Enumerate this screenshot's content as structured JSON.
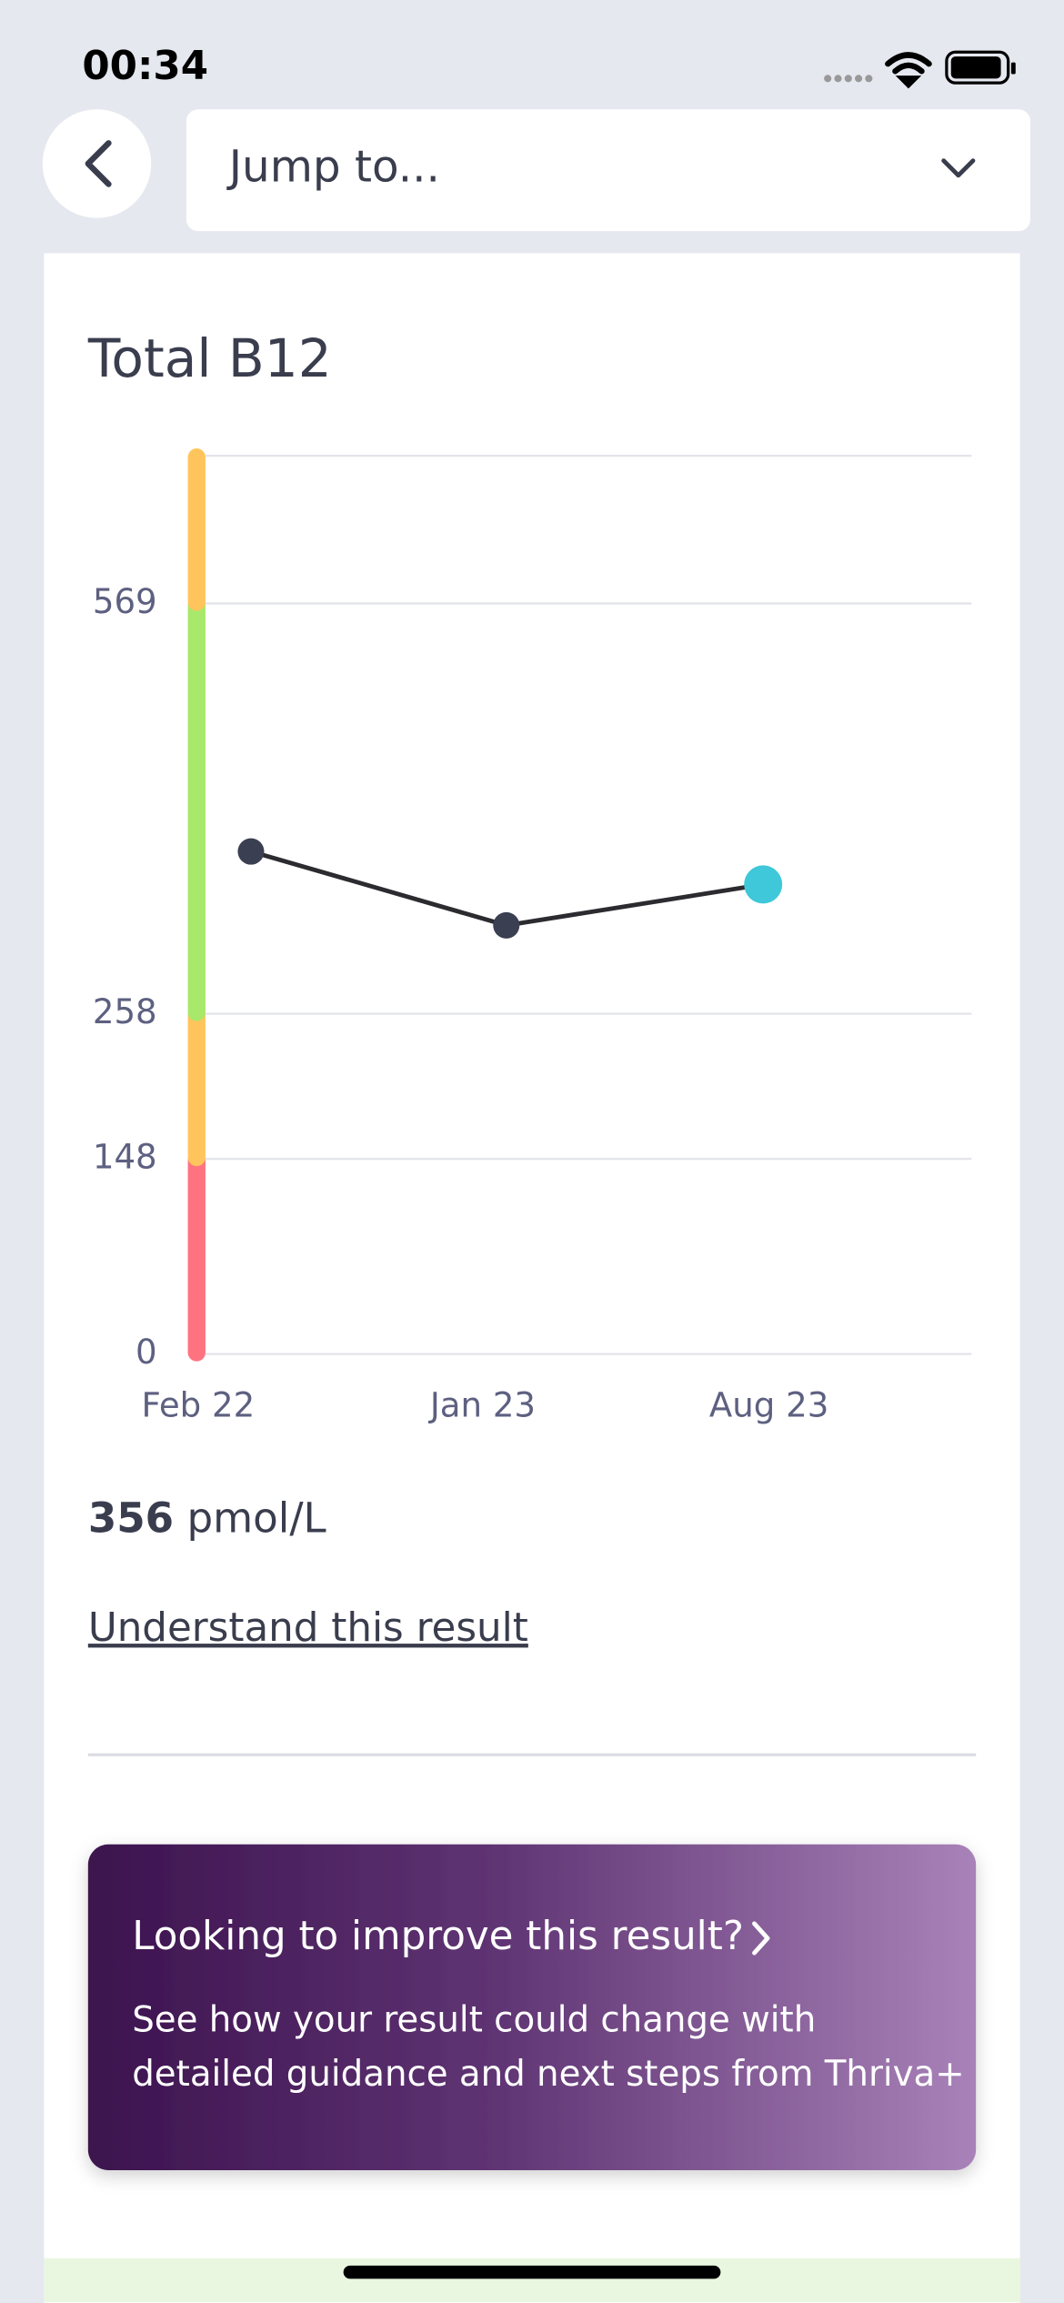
{
  "status_bar": {
    "time": "00:34"
  },
  "nav": {
    "jump_to": "Jump to..."
  },
  "chart_data": {
    "type": "line",
    "title": "Total B12",
    "categories": [
      "Feb 22",
      "Jan 23",
      "Aug 23"
    ],
    "values": [
      381,
      325,
      356
    ],
    "color": "#2b2b30",
    "point_color": "#3b3f52",
    "highlight_color": "#3ec8d9",
    "ylim": [
      0,
      681
    ],
    "yticks": [
      0,
      148,
      258,
      569
    ],
    "grid": true,
    "ranges": [
      {
        "from": 0,
        "to": 148,
        "color": "#ff7381"
      },
      {
        "from": 148,
        "to": 258,
        "color": "#ffc55c"
      },
      {
        "from": 258,
        "to": 569,
        "color": "#a8e86a"
      },
      {
        "from": 569,
        "to": 681,
        "color": "#ffc55c"
      }
    ]
  },
  "result": {
    "unit": "pmol/L",
    "link": "Understand this result"
  },
  "promo": {
    "title": "Looking to improve this result?",
    "lines": [
      "See how your result could change with",
      "detailed guidance and next steps from Thriva+"
    ]
  }
}
